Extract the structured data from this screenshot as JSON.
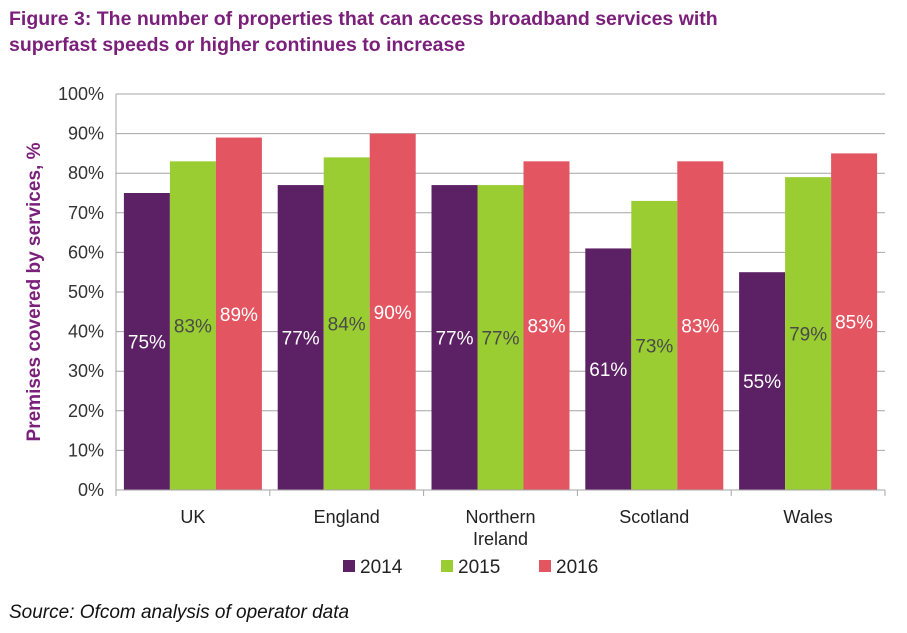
{
  "title_line1": "Figure 3: The number of properties that can access broadband services with",
  "title_line2": "superfast speeds or higher continues to increase",
  "source": "Source: Ofcom analysis of operator data",
  "colors": {
    "2014": "#5c2164",
    "2015": "#9acd32",
    "2016": "#e25561",
    "title": "#7a1f7a"
  },
  "chart_data": {
    "type": "bar",
    "categories": [
      "UK",
      "England",
      "Northern Ireland",
      "Scotland",
      "Wales"
    ],
    "category_lines": [
      [
        "UK"
      ],
      [
        "England"
      ],
      [
        "Northern",
        "Ireland"
      ],
      [
        "Scotland"
      ],
      [
        "Wales"
      ]
    ],
    "series": [
      {
        "name": "2014",
        "values": [
          75,
          77,
          77,
          61,
          55
        ],
        "labels": [
          "75%",
          "77%",
          "77%",
          "61%",
          "55%"
        ]
      },
      {
        "name": "2015",
        "values": [
          83,
          84,
          77,
          73,
          79
        ],
        "labels": [
          "83%",
          "84%",
          "77%",
          "73%",
          "79%"
        ]
      },
      {
        "name": "2016",
        "values": [
          89,
          90,
          83,
          83,
          85
        ],
        "labels": [
          "89%",
          "90%",
          "83%",
          "83%",
          "85%"
        ]
      }
    ],
    "ylabel": "Premises covered by services, %",
    "xlabel": "",
    "ylim": [
      0,
      100
    ],
    "yticks": [
      0,
      10,
      20,
      30,
      40,
      50,
      60,
      70,
      80,
      90,
      100
    ],
    "ytick_labels": [
      "0%",
      "10%",
      "20%",
      "30%",
      "40%",
      "50%",
      "60%",
      "70%",
      "80%",
      "90%",
      "100%"
    ],
    "grid": true,
    "legend_position": "bottom"
  }
}
